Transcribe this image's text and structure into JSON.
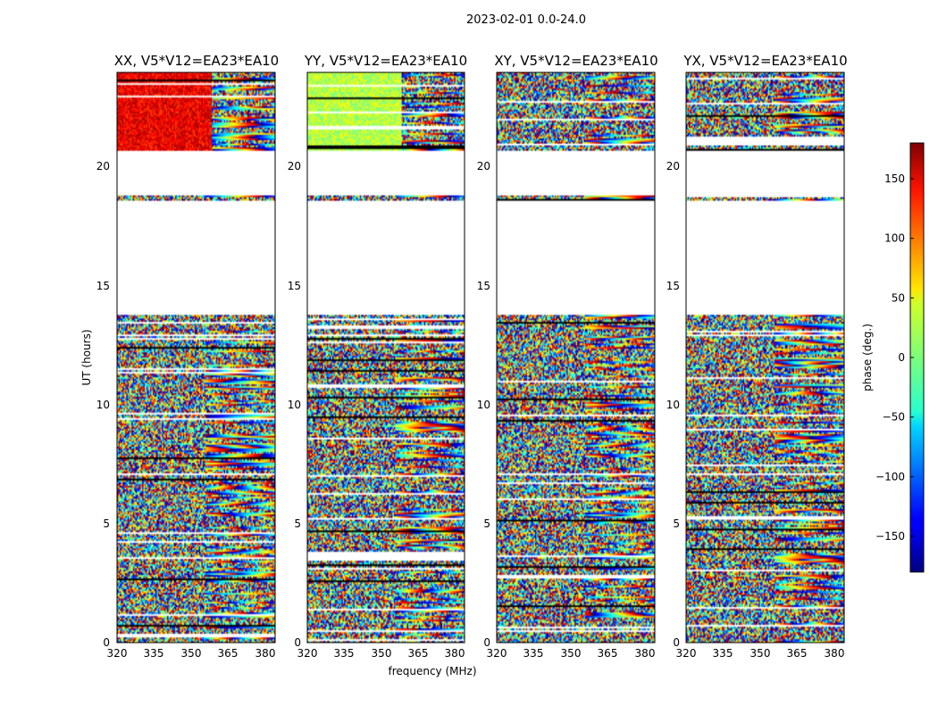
{
  "suptitle": "2023-02-01 0.0-24.0",
  "chart_data": [
    {
      "type": "heatmap",
      "title": "XX, V5*V12=EA23*EA10",
      "base_phase": 140,
      "data_rows": [
        [
          20.7,
          24.0
        ],
        [
          18.6,
          18.8
        ],
        [
          0.0,
          13.8
        ]
      ],
      "xlim": [
        320,
        384
      ],
      "ylim": [
        0,
        24
      ],
      "xticks": [
        "320",
        "335",
        "350",
        "365",
        "380"
      ],
      "yticks": [
        "0",
        "5",
        "10",
        "15",
        "20"
      ],
      "ylabel": "UT (hours)"
    },
    {
      "type": "heatmap",
      "title": "YY, V5*V12=EA23*EA10",
      "base_phase": 20,
      "data_rows": [
        [
          20.7,
          24.0
        ],
        [
          18.6,
          18.8
        ],
        [
          0.0,
          13.8
        ]
      ],
      "xlim": [
        320,
        384
      ],
      "ylim": [
        0,
        24
      ],
      "xticks": [
        "320",
        "335",
        "350",
        "365",
        "380"
      ],
      "yticks": [
        "0",
        "5",
        "10",
        "15",
        "20"
      ],
      "xlabel": "frequency (MHz)"
    },
    {
      "type": "heatmap",
      "title": "XY, V5*V12=EA23*EA10",
      "base_phase": null,
      "data_rows": [
        [
          20.7,
          24.0
        ],
        [
          18.6,
          18.8
        ],
        [
          0.0,
          13.8
        ]
      ],
      "xlim": [
        320,
        384
      ],
      "ylim": [
        0,
        24
      ],
      "xticks": [
        "320",
        "335",
        "350",
        "365",
        "380"
      ],
      "yticks": [
        "0",
        "5",
        "10",
        "15",
        "20"
      ]
    },
    {
      "type": "heatmap",
      "title": "YX, V5*V12=EA23*EA10",
      "base_phase": null,
      "data_rows": [
        [
          20.7,
          24.0
        ],
        [
          18.6,
          18.8
        ],
        [
          0.0,
          13.8
        ]
      ],
      "xlim": [
        320,
        384
      ],
      "ylim": [
        0,
        24
      ],
      "xticks": [
        "320",
        "335",
        "350",
        "365",
        "380"
      ],
      "yticks": [
        "0",
        "5",
        "10",
        "15",
        "20"
      ]
    }
  ],
  "colorbar": {
    "label": "phase (deg.)",
    "range": [
      -180,
      180
    ],
    "ticks": [
      "150",
      "100",
      "50",
      "0",
      "−50",
      "−100",
      "−150"
    ],
    "tick_values": [
      150,
      100,
      50,
      0,
      -50,
      -100,
      -150
    ],
    "colormap": "jet"
  }
}
